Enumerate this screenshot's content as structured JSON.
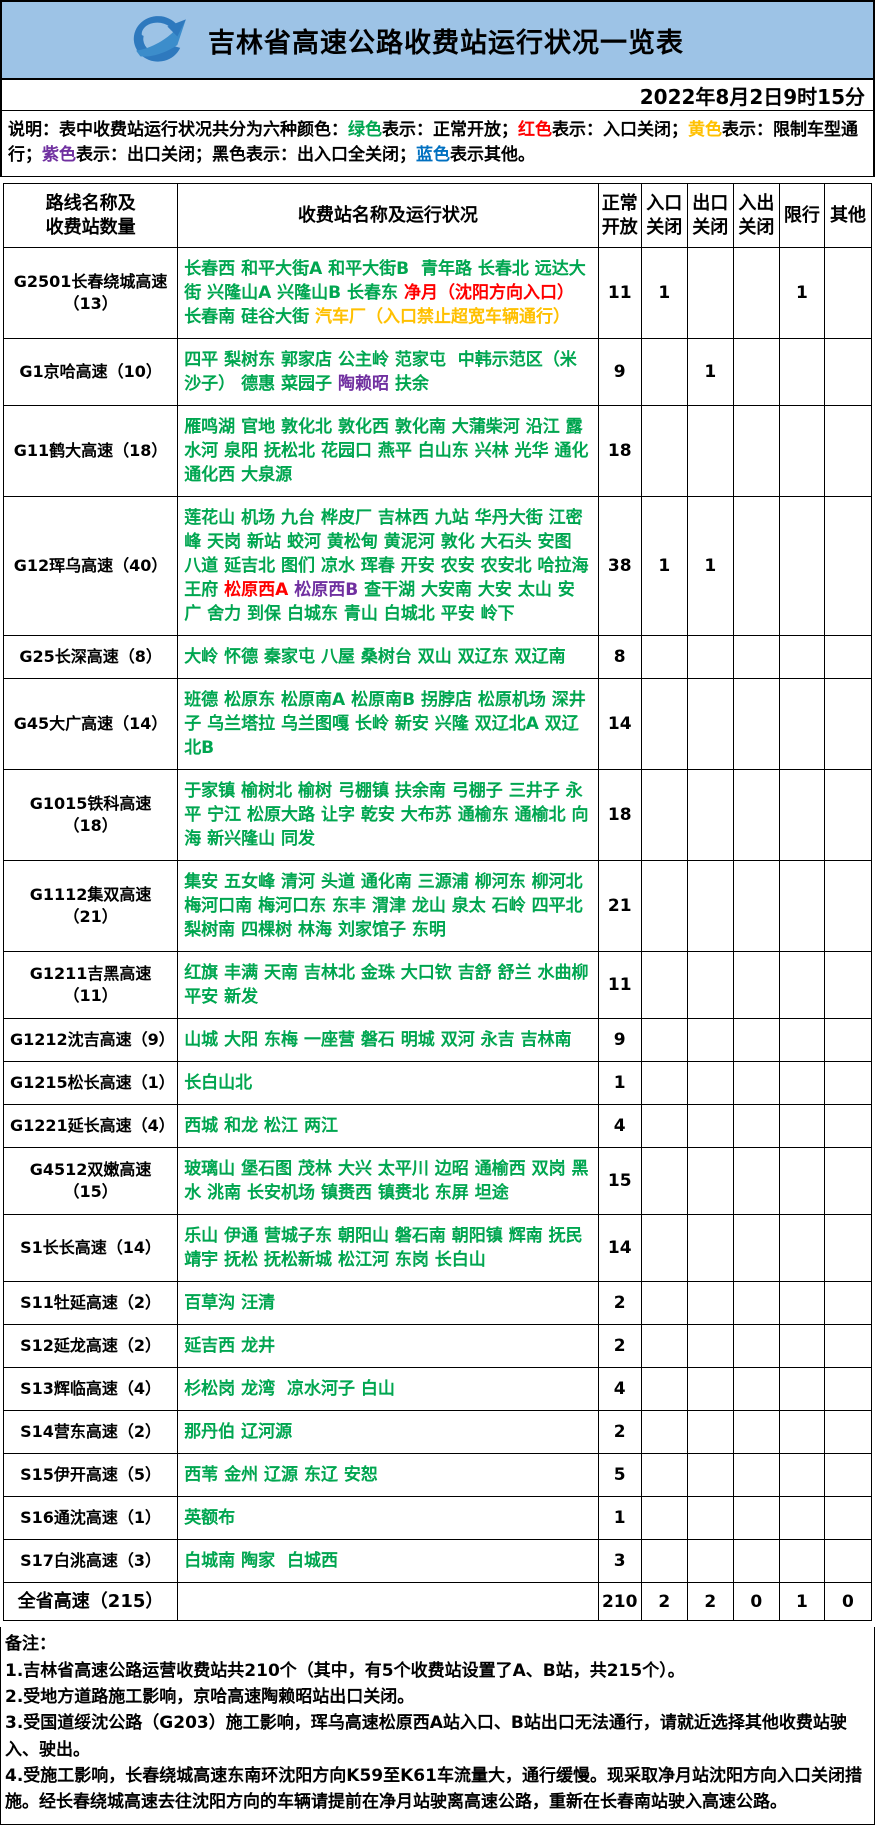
{
  "header": {
    "title": "吉林省高速公路收费站运行状况一览表"
  },
  "date_text": "2022年8月2日9时15分",
  "status_colors": {
    "green": "#00A650",
    "red": "#FF0000",
    "yellow": "#FFC000",
    "purple": "#7030A0",
    "blue": "#0070C0",
    "black": "#000000",
    "banner_blue": "#9DC3E6"
  },
  "legend": {
    "segments": [
      {
        "color": "black",
        "text": "说明：表中收费站运行状况共分为六种颜色："
      },
      {
        "color": "green",
        "text": "绿色"
      },
      {
        "color": "black",
        "text": "表示：正常开放；"
      },
      {
        "color": "red",
        "text": "红色"
      },
      {
        "color": "black",
        "text": "表示：入口关闭；"
      },
      {
        "color": "yellow",
        "text": "黄色"
      },
      {
        "color": "black",
        "text": "表示：限制车型通行；"
      },
      {
        "color": "purple",
        "text": "紫色"
      },
      {
        "color": "black",
        "text": "表示：出口关闭；黑色表示：出入口全关闭；"
      },
      {
        "color": "blue",
        "text": "蓝色"
      },
      {
        "color": "black",
        "text": "表示其他。"
      }
    ]
  },
  "table": {
    "columns": [
      "路线名称及\n收费站数量",
      "收费站名称及运行状况",
      "正常\n开放",
      "入口\n关闭",
      "出口\n关闭",
      "入出\n关闭",
      "限行",
      "其他"
    ],
    "rows": [
      {
        "route": "G2501长春绕城高速（13）",
        "stations": [
          {
            "color": "green",
            "text": "长春西 和平大街A 和平大街B  青年路 长春北 远达大街 兴隆山A 兴隆山B 长春东 "
          },
          {
            "color": "red",
            "text": "净月（沈阳方向入口）"
          },
          {
            "color": "green",
            "text": " 长春南 硅谷大街 "
          },
          {
            "color": "yellow",
            "text": "汽车厂（入口禁止超宽车辆通行）"
          }
        ],
        "values": [
          "11",
          "1",
          "",
          "",
          "1",
          ""
        ]
      },
      {
        "route": "G1京哈高速（10）",
        "stations": [
          {
            "color": "green",
            "text": "四平 梨树东 郭家店 公主岭 范家屯  中韩示范区（米沙子） 德惠 菜园子 "
          },
          {
            "color": "purple",
            "text": "陶赖昭"
          },
          {
            "color": "green",
            "text": " 扶余"
          }
        ],
        "values": [
          "9",
          "",
          "1",
          "",
          "",
          ""
        ]
      },
      {
        "route": "G11鹤大高速（18）",
        "stations": [
          {
            "color": "green",
            "text": "雁鸣湖 官地 敦化北 敦化西 敦化南 大蒲柴河 沿江 露水河 泉阳 抚松北 花园口 燕平 白山东 兴林 光华 通化 通化西 大泉源"
          }
        ],
        "values": [
          "18",
          "",
          "",
          "",
          "",
          ""
        ]
      },
      {
        "route": "G12珲乌高速（40）",
        "stations": [
          {
            "color": "green",
            "text": "莲花山 机场 九台 桦皮厂 吉林西 九站 华丹大街 江密峰 天岗 新站 蛟河 黄松甸 黄泥河 敦化 大石头 安图 八道 延吉北 图们 凉水 珲春 开安 农安 农安北 哈拉海 王府 "
          },
          {
            "color": "red",
            "text": "松原西A"
          },
          {
            "color": "green",
            "text": " "
          },
          {
            "color": "purple",
            "text": "松原西B"
          },
          {
            "color": "green",
            "text": " 查干湖 大安南 大安 太山 安广 舍力 到保 白城东 青山 白城北 平安 岭下"
          }
        ],
        "values": [
          "38",
          "1",
          "1",
          "",
          "",
          ""
        ]
      },
      {
        "route": "G25长深高速（8）",
        "stations": [
          {
            "color": "green",
            "text": "大岭 怀德 秦家屯 八屋 桑树台 双山 双辽东 双辽南"
          }
        ],
        "values": [
          "8",
          "",
          "",
          "",
          "",
          ""
        ]
      },
      {
        "route": "G45大广高速（14）",
        "stations": [
          {
            "color": "green",
            "text": "班德 松原东 松原南A 松原南B 拐脖店 松原机场 深井子 乌兰塔拉 乌兰图嘎 长岭 新安 兴隆 双辽北A 双辽北B"
          }
        ],
        "values": [
          "14",
          "",
          "",
          "",
          "",
          ""
        ]
      },
      {
        "route": "G1015铁科高速（18）",
        "stations": [
          {
            "color": "green",
            "text": "于家镇 榆树北 榆树 弓棚镇 扶余南 弓棚子 三井子 永平 宁江 松原大路 让字 乾安 大布苏 通榆东 通榆北 向海 新兴隆山 同发"
          }
        ],
        "values": [
          "18",
          "",
          "",
          "",
          "",
          ""
        ]
      },
      {
        "route": "G1112集双高速（21）",
        "stations": [
          {
            "color": "green",
            "text": "集安 五女峰 清河 头道 通化南 三源浦 柳河东 柳河北 梅河口南 梅河口东 东丰 渭津 龙山 泉太 石岭 四平北 梨树南 四棵树 林海 刘家馆子 东明"
          }
        ],
        "values": [
          "21",
          "",
          "",
          "",
          "",
          ""
        ]
      },
      {
        "route": "G1211吉黑高速（11）",
        "stations": [
          {
            "color": "green",
            "text": "红旗 丰满 天南 吉林北 金珠 大口钦 吉舒 舒兰 水曲柳 平安 新发"
          }
        ],
        "values": [
          "11",
          "",
          "",
          "",
          "",
          ""
        ]
      },
      {
        "route": "G1212沈吉高速（9）",
        "stations": [
          {
            "color": "green",
            "text": "山城 大阳 东梅 一座营 磐石 明城 双河 永吉 吉林南"
          }
        ],
        "values": [
          "9",
          "",
          "",
          "",
          "",
          ""
        ]
      },
      {
        "route": "G1215松长高速（1）",
        "stations": [
          {
            "color": "green",
            "text": "长白山北"
          }
        ],
        "values": [
          "1",
          "",
          "",
          "",
          "",
          ""
        ]
      },
      {
        "route": "G1221延长高速（4）",
        "stations": [
          {
            "color": "green",
            "text": "西城 和龙 松江 两江"
          }
        ],
        "values": [
          "4",
          "",
          "",
          "",
          "",
          ""
        ]
      },
      {
        "route": "G4512双嫩高速（15）",
        "stations": [
          {
            "color": "green",
            "text": "玻璃山 堡石图 茂林 大兴 太平川 边昭 通榆西 双岗 黑水 洮南 长安机场 镇赉西 镇赉北 东屏 坦途"
          }
        ],
        "values": [
          "15",
          "",
          "",
          "",
          "",
          ""
        ]
      },
      {
        "route": "S1长长高速（14）",
        "stations": [
          {
            "color": "green",
            "text": "乐山 伊通 营城子东 朝阳山 磐石南 朝阳镇 辉南 抚民 靖宇 抚松 抚松新城 松江河 东岗 长白山"
          }
        ],
        "values": [
          "14",
          "",
          "",
          "",
          "",
          ""
        ]
      },
      {
        "route": "S11牡延高速（2）",
        "stations": [
          {
            "color": "green",
            "text": "百草沟 汪清"
          }
        ],
        "values": [
          "2",
          "",
          "",
          "",
          "",
          ""
        ]
      },
      {
        "route": "S12延龙高速（2）",
        "stations": [
          {
            "color": "green",
            "text": "延吉西 龙井"
          }
        ],
        "values": [
          "2",
          "",
          "",
          "",
          "",
          ""
        ]
      },
      {
        "route": "S13辉临高速（4）",
        "stations": [
          {
            "color": "green",
            "text": "杉松岗 龙湾  凉水河子 白山"
          }
        ],
        "values": [
          "4",
          "",
          "",
          "",
          "",
          ""
        ]
      },
      {
        "route": "S14营东高速（2）",
        "stations": [
          {
            "color": "green",
            "text": "那丹伯 辽河源"
          }
        ],
        "values": [
          "2",
          "",
          "",
          "",
          "",
          ""
        ]
      },
      {
        "route": "S15伊开高速（5）",
        "stations": [
          {
            "color": "green",
            "text": "西苇 金州 辽源 东辽 安恕"
          }
        ],
        "values": [
          "5",
          "",
          "",
          "",
          "",
          ""
        ]
      },
      {
        "route": "S16通沈高速（1）",
        "stations": [
          {
            "color": "green",
            "text": "英额布"
          }
        ],
        "values": [
          "1",
          "",
          "",
          "",
          "",
          ""
        ]
      },
      {
        "route": "S17白洮高速（3）",
        "stations": [
          {
            "color": "green",
            "text": "白城南 陶家  白城西"
          }
        ],
        "values": [
          "3",
          "",
          "",
          "",
          "",
          ""
        ]
      },
      {
        "route": "全省高速（215）",
        "total": true,
        "stations": [],
        "values": [
          "210",
          "2",
          "2",
          "0",
          "1",
          "0"
        ]
      }
    ]
  },
  "notes": {
    "title": "备注：",
    "items": [
      "1.吉林省高速公路运营收费站共210个（其中，有5个收费站设置了A、B站，共215个）。",
      "2.受地方道路施工影响，京哈高速陶赖昭站出口关闭。",
      "3.受国道绥沈公路（G203）施工影响，珲乌高速松原西A站入口、B站出口无法通行，请就近选择其他收费站驶入、驶出。",
      "4.受施工影响，长春绕城高速东南环沈阳方向K59至K61车流量大，通行缓慢。现采取净月站沈阳方向入口关闭措施。经长春绕城高速去往沈阳方向的车辆请提前在净月站驶离高速公路，重新在长春南站驶入高速公路。"
    ]
  }
}
